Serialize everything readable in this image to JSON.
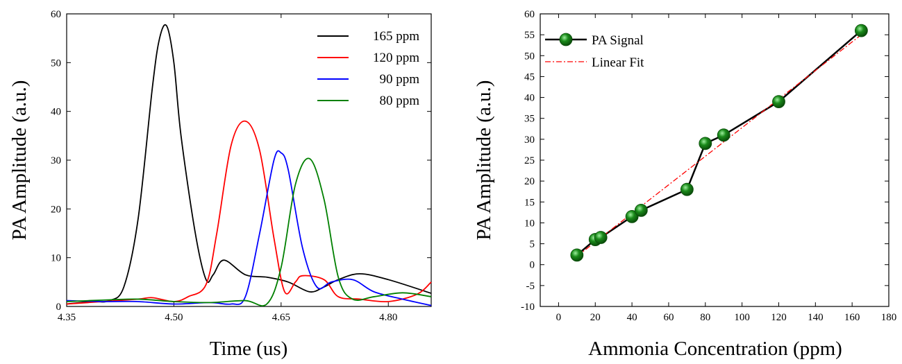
{
  "chart_data": [
    {
      "type": "line",
      "title": "",
      "xlabel": "Time (us)",
      "ylabel": "PA Amplitude (a.u.)",
      "xlim": [
        4.35,
        4.86
      ],
      "ylim": [
        0,
        60
      ],
      "xticks": [
        "4.35",
        "4.50",
        "4.65",
        "4.80"
      ],
      "yticks": [
        "0",
        "10",
        "20",
        "30",
        "40",
        "50",
        "60"
      ],
      "grid": false,
      "legend_position": "top-right",
      "series": [
        {
          "name": "165 ppm",
          "color": "#000000",
          "x": [
            4.35,
            4.37,
            4.39,
            4.41,
            4.43,
            4.45,
            4.47,
            4.48,
            4.49,
            4.5,
            4.51,
            4.53,
            4.545,
            4.555,
            4.57,
            4.6,
            4.63,
            4.66,
            4.69,
            4.71,
            4.73,
            4.76,
            4.8,
            4.86
          ],
          "y": [
            0.5,
            0.8,
            1.0,
            1.2,
            4.0,
            18.0,
            45.0,
            55.0,
            57.5,
            50.0,
            35.0,
            15.0,
            5.5,
            6.5,
            9.5,
            6.5,
            6.0,
            5.0,
            3.0,
            4.0,
            5.5,
            6.7,
            5.5,
            2.7
          ]
        },
        {
          "name": "120 ppm",
          "color": "#ff0000",
          "x": [
            4.35,
            4.4,
            4.45,
            4.47,
            4.5,
            4.52,
            4.545,
            4.56,
            4.58,
            4.6,
            4.62,
            4.64,
            4.655,
            4.67,
            4.68,
            4.71,
            4.73,
            4.76,
            4.8,
            4.84,
            4.86
          ],
          "y": [
            0.5,
            1.0,
            1.5,
            1.8,
            1.0,
            2.0,
            4.5,
            15.0,
            33.0,
            38.0,
            32.0,
            14.0,
            3.0,
            5.0,
            6.3,
            5.5,
            2.0,
            1.5,
            1.0,
            2.5,
            5.0
          ]
        },
        {
          "name": "90 ppm",
          "color": "#0000ff",
          "x": [
            4.35,
            4.4,
            4.45,
            4.5,
            4.55,
            4.58,
            4.6,
            4.62,
            4.64,
            4.65,
            4.66,
            4.68,
            4.7,
            4.72,
            4.75,
            4.78,
            4.82,
            4.86
          ],
          "y": [
            1.2,
            1.0,
            1.0,
            0.5,
            0.8,
            0.5,
            2.0,
            15.0,
            30.0,
            31.5,
            28.0,
            12.0,
            4.0,
            5.0,
            5.5,
            3.0,
            1.5,
            0.2
          ]
        },
        {
          "name": "80 ppm",
          "color": "#008000",
          "x": [
            4.35,
            4.4,
            4.45,
            4.5,
            4.55,
            4.6,
            4.63,
            4.65,
            4.67,
            4.69,
            4.71,
            4.73,
            4.75,
            4.78,
            4.82,
            4.86
          ],
          "y": [
            1.0,
            1.3,
            1.5,
            1.0,
            0.8,
            1.2,
            0.5,
            8.0,
            25.0,
            30.3,
            22.0,
            6.0,
            1.5,
            2.0,
            2.8,
            2.0
          ]
        }
      ]
    },
    {
      "type": "scatter",
      "title": "",
      "xlabel": "Ammonia Concentration (ppm)",
      "ylabel": "PA Amplitude (a.u.)",
      "xlim": [
        -10,
        180
      ],
      "ylim": [
        -10,
        60
      ],
      "xticks": [
        "0",
        "20",
        "40",
        "60",
        "80",
        "100",
        "120",
        "140",
        "160",
        "180"
      ],
      "yticks": [
        "-10",
        "-5",
        "0",
        "5",
        "10",
        "15",
        "20",
        "25",
        "30",
        "35",
        "40",
        "45",
        "50",
        "55",
        "60"
      ],
      "grid": false,
      "legend_position": "top-left",
      "series": [
        {
          "name": "PA Signal",
          "color": "#000000",
          "marker_color": "#1a8a1a",
          "x": [
            10,
            20,
            23,
            40,
            45,
            70,
            80,
            90,
            120,
            165
          ],
          "y": [
            2.3,
            6.0,
            6.5,
            11.5,
            13.0,
            18.0,
            29.0,
            31.0,
            39.0,
            56.0
          ]
        },
        {
          "name": "Linear Fit",
          "color": "#ff0000",
          "style": "dash-dot",
          "x": [
            10,
            165
          ],
          "y": [
            2.0,
            55.0
          ]
        }
      ]
    }
  ]
}
